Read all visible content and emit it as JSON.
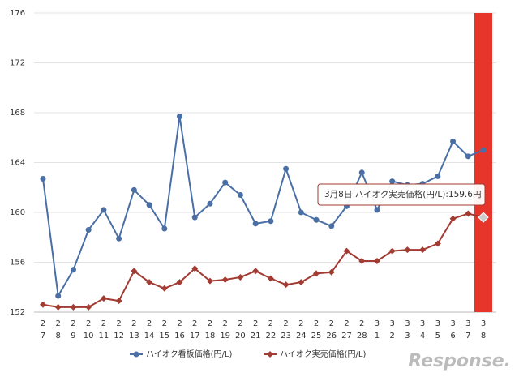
{
  "chart_data": {
    "type": "line",
    "categories": [
      [
        "2",
        "7"
      ],
      [
        "2",
        "8"
      ],
      [
        "2",
        "9"
      ],
      [
        "2",
        "10"
      ],
      [
        "2",
        "11"
      ],
      [
        "2",
        "12"
      ],
      [
        "2",
        "13"
      ],
      [
        "2",
        "14"
      ],
      [
        "2",
        "15"
      ],
      [
        "2",
        "16"
      ],
      [
        "2",
        "17"
      ],
      [
        "2",
        "18"
      ],
      [
        "2",
        "19"
      ],
      [
        "2",
        "20"
      ],
      [
        "2",
        "21"
      ],
      [
        "2",
        "22"
      ],
      [
        "2",
        "23"
      ],
      [
        "2",
        "24"
      ],
      [
        "2",
        "25"
      ],
      [
        "2",
        "26"
      ],
      [
        "2",
        "27"
      ],
      [
        "2",
        "28"
      ],
      [
        "3",
        "1"
      ],
      [
        "3",
        "2"
      ],
      [
        "3",
        "3"
      ],
      [
        "3",
        "4"
      ],
      [
        "3",
        "5"
      ],
      [
        "3",
        "6"
      ],
      [
        "3",
        "7"
      ],
      [
        "3",
        "8"
      ]
    ],
    "series": [
      {
        "name": "ハイオク看板価格(円/L)",
        "color": "#4a6fa5",
        "marker": "circle",
        "values": [
          162.7,
          153.3,
          155.4,
          158.6,
          160.2,
          157.9,
          161.8,
          160.6,
          158.7,
          167.7,
          159.6,
          160.7,
          162.4,
          161.4,
          159.1,
          159.3,
          163.5,
          160.0,
          159.4,
          158.9,
          160.5,
          163.2,
          160.2,
          162.5,
          162.2,
          162.3,
          162.9,
          165.7,
          164.5,
          165.0
        ]
      },
      {
        "name": "ハイオク実売価格(円/L)",
        "color": "#a23b32",
        "marker": "diamond",
        "values": [
          152.6,
          152.4,
          152.4,
          152.4,
          153.1,
          152.9,
          155.3,
          154.4,
          153.9,
          154.4,
          155.5,
          154.5,
          154.6,
          154.8,
          155.3,
          154.7,
          154.2,
          154.4,
          155.1,
          155.2,
          156.9,
          156.1,
          156.1,
          156.9,
          157.0,
          157.0,
          157.5,
          159.5,
          159.9,
          159.6
        ]
      }
    ],
    "ylim": [
      152,
      176
    ],
    "yticks": [
      152,
      156,
      160,
      164,
      168,
      172,
      176
    ],
    "grid": true,
    "highlight_color": "#e8352b",
    "tooltip": "3月8日 ハイオク実売価格(円/L):159.6円",
    "watermark": "Response."
  }
}
